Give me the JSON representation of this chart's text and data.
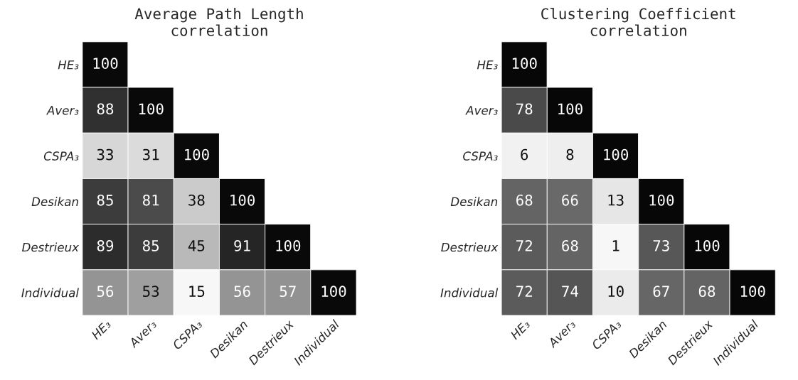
{
  "chart_data": [
    {
      "type": "heatmap",
      "title": "Average Path Length\ncorrelation",
      "categories": [
        "HE₃",
        "Aver₃",
        "CSPA₃",
        "Desikan",
        "Destrieux",
        "Individual"
      ],
      "y_categories": [
        "HE₃",
        "Aver₃",
        "CSPA₃",
        "Desikan",
        "Destrieux",
        "Individual"
      ],
      "cells": [
        [
          100,
          null,
          null,
          null,
          null,
          null
        ],
        [
          88,
          100,
          null,
          null,
          null,
          null
        ],
        [
          33,
          31,
          100,
          null,
          null,
          null
        ],
        [
          85,
          81,
          38,
          100,
          null,
          null
        ],
        [
          89,
          85,
          45,
          91,
          100,
          null
        ],
        [
          56,
          53,
          15,
          56,
          57,
          100
        ]
      ],
      "data_labels": true
    },
    {
      "type": "heatmap",
      "title": "Clustering Coefficient\ncorrelation",
      "categories": [
        "HE₃",
        "Aver₃",
        "CSPA₃",
        "Desikan",
        "Destrieux",
        "Individual"
      ],
      "y_categories": [
        "HE₃",
        "Aver₃",
        "CSPA₃",
        "Desikan",
        "Destrieux",
        "Individual"
      ],
      "cells": [
        [
          100,
          null,
          null,
          null,
          null,
          null
        ],
        [
          78,
          100,
          null,
          null,
          null,
          null
        ],
        [
          6,
          8,
          100,
          null,
          null,
          null
        ],
        [
          68,
          66,
          13,
          100,
          null,
          null
        ],
        [
          72,
          68,
          1,
          73,
          100,
          null
        ],
        [
          72,
          74,
          10,
          67,
          68,
          100
        ]
      ],
      "data_labels": true
    }
  ]
}
